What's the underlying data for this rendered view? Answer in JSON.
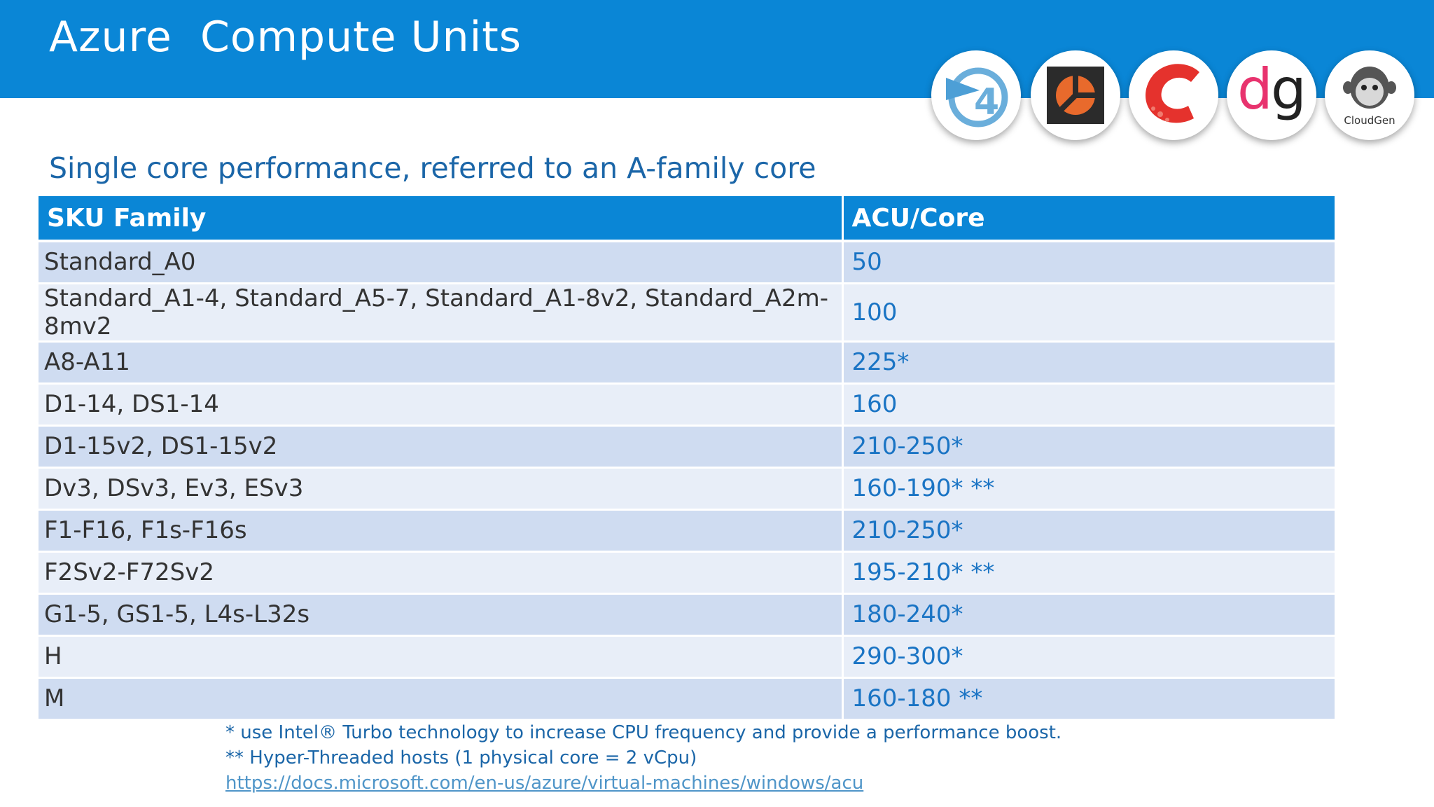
{
  "slide": {
    "title": "Azure  Compute Units",
    "subtitle": "Single core performance, referred to an A-family core"
  },
  "logos": [
    {
      "name": "dotnet4-logo",
      "glyph": "4",
      "color": "#6aaedb"
    },
    {
      "name": "black-orange-square-logo",
      "color": "#e86a2c"
    },
    {
      "name": "red-c-logo",
      "color": "#e5322d"
    },
    {
      "name": "dg-logo",
      "text_d": "d",
      "text_g": "g",
      "color_d": "#e8336e",
      "color_g": "#222222"
    },
    {
      "name": "cloudgen-logo",
      "text": "CloudGen"
    }
  ],
  "table": {
    "headers": [
      "SKU Family",
      "ACU/Core"
    ],
    "rows": [
      {
        "sku": "Standard_A0",
        "acu": "50"
      },
      {
        "sku": "Standard_A1-4, Standard_A5-7, Standard_A1-8v2, Standard_A2m-8mv2",
        "acu": "100"
      },
      {
        "sku": "A8-A11",
        "acu": "225*"
      },
      {
        "sku": "D1-14, DS1-14",
        "acu": "160"
      },
      {
        "sku": "D1-15v2, DS1-15v2",
        "acu": "210-250*"
      },
      {
        "sku": "Dv3, DSv3, Ev3, ESv3",
        "acu": "160-190* **"
      },
      {
        "sku": "F1-F16, F1s-F16s",
        "acu": "210-250*"
      },
      {
        "sku": "F2Sv2-F72Sv2",
        "acu": "195-210* **"
      },
      {
        "sku": "G1-5, GS1-5, L4s-L32s",
        "acu": "180-240*"
      },
      {
        "sku": "H",
        "acu": "290-300*"
      },
      {
        "sku": "M",
        "acu": "160-180 **"
      }
    ]
  },
  "footnotes": {
    "turbo": "* use Intel® Turbo technology to increase CPU frequency and provide a performance boost.",
    "hyperthread": "** Hyper-Threaded hosts (1 physical core = 2 vCpu)",
    "link": "https://docs.microsoft.com/en-us/azure/virtual-machines/windows/acu"
  }
}
